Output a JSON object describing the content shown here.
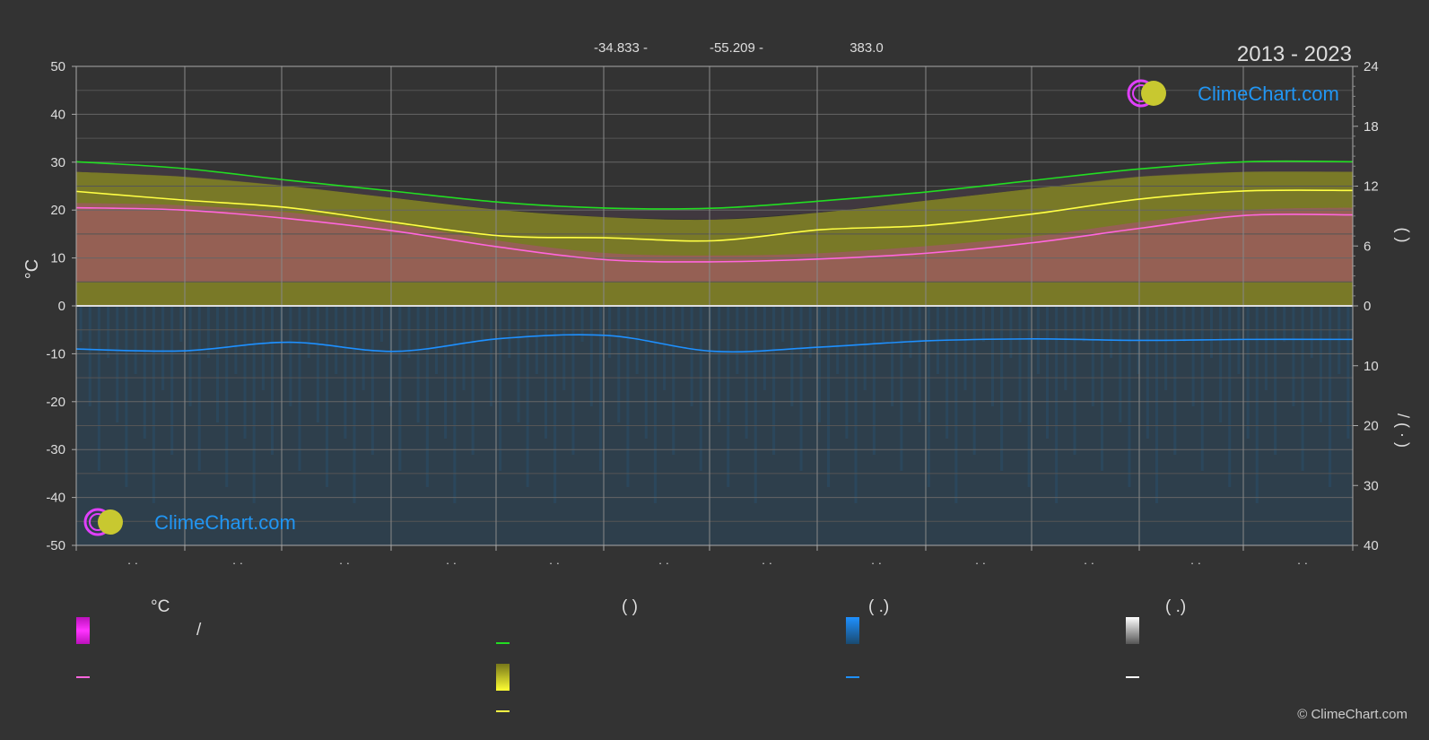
{
  "header": {
    "lat": "-34.833 -",
    "lon": "-55.209 -",
    "elev": "383.0",
    "period": "2013 - 2023"
  },
  "branding": {
    "logo_text": "ClimeChart.com",
    "copyright": "© ClimeChart.com"
  },
  "colors": {
    "background": "#333333",
    "daylight": "#22dd22",
    "sunshine_band": "#a8a820",
    "sunshine_line": "#ffff44",
    "temp_band": "#cc33aa",
    "temp_line": "#ff66dd",
    "precip": "#1f6ea8",
    "precip_line": "#1e90ff",
    "grid": "#666666",
    "logo_text": "#2196f3"
  },
  "legend": {
    "temp_heading": "°C",
    "sun_heading": "(          )",
    "rain_heading": "(    .)",
    "snow_heading": "(    .)",
    "temp_slash": "/"
  },
  "chart_data": {
    "type": "area",
    "x_ticks": [
      "· ·",
      "· ·",
      "· ·",
      "· ·",
      "· ·",
      "· ·",
      "· ·",
      "· ·",
      "· ·",
      "· ·",
      "· ·",
      "· ·"
    ],
    "y_left": {
      "label": "°C",
      "ticks": [
        50,
        40,
        30,
        20,
        10,
        0,
        -10,
        -20,
        -30,
        -40,
        -50
      ],
      "range": [
        -50,
        50
      ]
    },
    "y_right_top": {
      "label": "(    )",
      "ticks": [
        24,
        18,
        12,
        6,
        0
      ],
      "range": [
        0,
        24
      ]
    },
    "y_right_bottom": {
      "label": "/ (  ·  )",
      "ticks": [
        0,
        10,
        20,
        30,
        40
      ],
      "range": [
        0,
        40
      ]
    },
    "series": [
      {
        "key": "daylight",
        "axis": "temp",
        "values": [
          30.1,
          28.7,
          26.2,
          23.9,
          21.6,
          20.4,
          20.4,
          21.9,
          23.8,
          26.2,
          28.6,
          30.1,
          30.1
        ]
      },
      {
        "key": "sunshine",
        "axis": "temp",
        "values": [
          23.9,
          22.1,
          20.5,
          17.4,
          14.6,
          14.2,
          13.6,
          15.9,
          16.8,
          19.2,
          22.3,
          24.0,
          24.1
        ]
      },
      {
        "key": "temp_mean",
        "axis": "temp",
        "values": [
          20.5,
          20.0,
          18.2,
          15.6,
          12.2,
          9.6,
          9.2,
          9.8,
          11.0,
          13.2,
          16.2,
          18.9,
          19.0
        ]
      },
      {
        "key": "precip",
        "axis": "temp",
        "values": [
          -9.0,
          -9.4,
          -7.6,
          -9.5,
          -6.8,
          -6.2,
          -9.5,
          -8.6,
          -7.3,
          -6.9,
          -7.2,
          -7.0,
          -7.0
        ]
      }
    ],
    "band_tops": {
      "sunshine_band": [
        28.0,
        27.0,
        25.0,
        22.5,
        20.0,
        18.5,
        18.0,
        19.5,
        22.0,
        24.5,
        27.0,
        28.0,
        28.0
      ],
      "temp_band": [
        21.5,
        21.0,
        19.5,
        17.0,
        13.5,
        11.0,
        10.5,
        11.0,
        12.5,
        14.5,
        17.5,
        20.0,
        20.5
      ]
    }
  }
}
